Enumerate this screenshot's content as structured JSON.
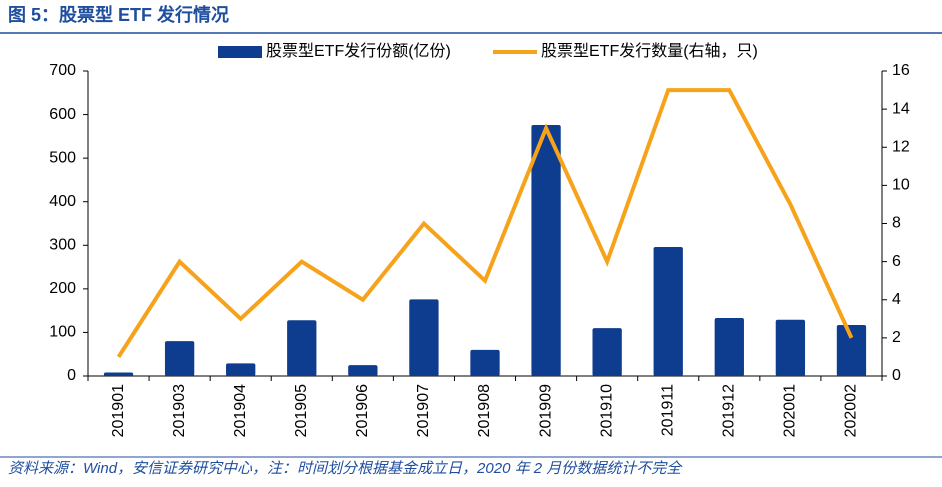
{
  "chart_data": {
    "type": "bar_line",
    "title": "图 5：股票型 ETF 发行情况",
    "source": "资料来源：Wind，安信证券研究中心，注：时间划分根据基金成立日，2020 年 2 月份数据统计不完全",
    "categories": [
      "201901",
      "201903",
      "201904",
      "201905",
      "201906",
      "201907",
      "201908",
      "201909",
      "201910",
      "201911",
      "201912",
      "202001",
      "202002"
    ],
    "series": [
      {
        "name": "股票型ETF发行份额(亿份)",
        "type": "bar",
        "color": "#0e3c8f",
        "values": [
          8,
          80,
          29,
          128,
          25,
          176,
          60,
          576,
          110,
          296,
          133,
          129,
          117
        ]
      },
      {
        "name": "股票型ETF发行数量(右轴，只)",
        "type": "line",
        "axis": "y2",
        "color": "#f7a21b",
        "values": [
          1,
          6,
          3,
          6,
          4,
          8,
          5,
          13,
          6,
          15,
          15,
          9,
          2
        ]
      }
    ],
    "ylim": [
      0,
      700
    ],
    "yticks": [
      0,
      100,
      200,
      300,
      400,
      500,
      600,
      700
    ],
    "y2lim": [
      0,
      16
    ],
    "y2ticks": [
      0,
      2,
      4,
      6,
      8,
      10,
      12,
      14,
      16
    ],
    "legend": "top"
  }
}
